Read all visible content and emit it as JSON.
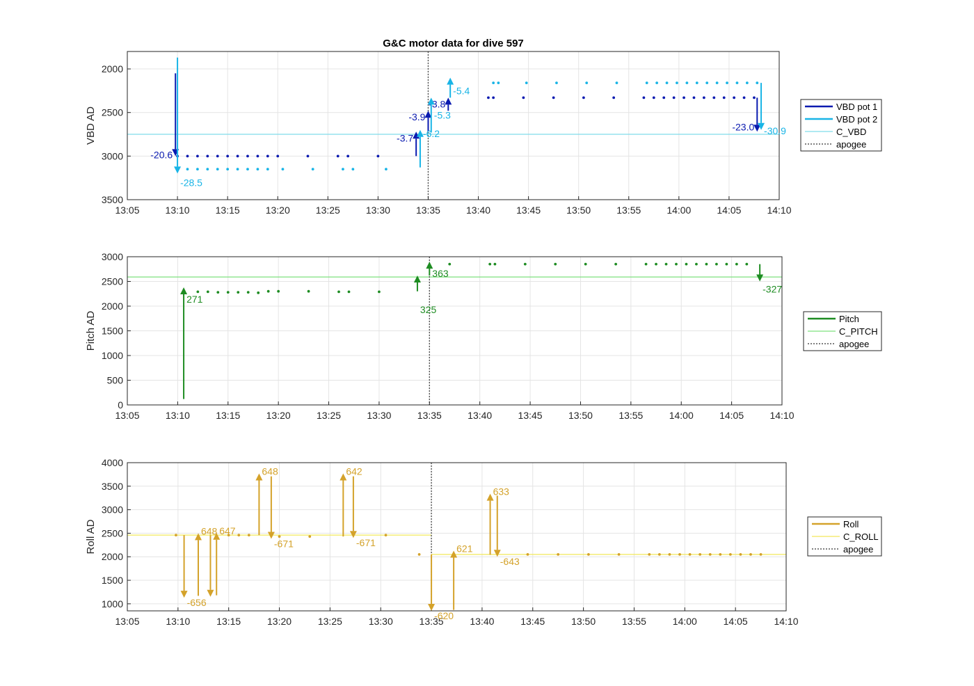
{
  "chart_data": [
    {
      "type": "line",
      "title": "G&C motor data for dive 597",
      "xlabel": "",
      "ylabel": "VBD AD",
      "xlim": [
        "13:05",
        "14:10"
      ],
      "ylim": [
        3500,
        1800
      ],
      "y_reversed": true,
      "grid": true,
      "legend_placement": "outside-right",
      "xticks": [
        "13:05",
        "13:10",
        "13:15",
        "13:20",
        "13:25",
        "13:30",
        "13:35",
        "13:40",
        "13:45",
        "13:50",
        "13:55",
        "14:00",
        "14:05",
        "14:10"
      ],
      "yticks": [
        2000,
        2500,
        3000,
        3500
      ],
      "reference_lines": [
        {
          "name": "C_VBD",
          "orientation": "horizontal",
          "value": 2750,
          "color": "#7fdcea"
        },
        {
          "name": "apogee",
          "orientation": "vertical",
          "value": "13:35",
          "color": "#555555",
          "dashed": true
        }
      ],
      "series": [
        {
          "name": "VBD pot 1",
          "color": "#0a1ab0",
          "points": [
            {
              "x": "13:10",
              "y": 3000
            },
            {
              "x": "13:11",
              "y": 3000
            },
            {
              "x": "13:12",
              "y": 3000
            },
            {
              "x": "13:13",
              "y": 3000
            },
            {
              "x": "13:14",
              "y": 3000
            },
            {
              "x": "13:15",
              "y": 3000
            },
            {
              "x": "13:16",
              "y": 3000
            },
            {
              "x": "13:17",
              "y": 3000
            },
            {
              "x": "13:18",
              "y": 3000
            },
            {
              "x": "13:19",
              "y": 3000
            },
            {
              "x": "13:20",
              "y": 3000
            },
            {
              "x": "13:23",
              "y": 3000
            },
            {
              "x": "13:26",
              "y": 3000
            },
            {
              "x": "13:27",
              "y": 3000
            },
            {
              "x": "13:30",
              "y": 3000
            },
            {
              "x": "13:41",
              "y": 2330
            },
            {
              "x": "13:41.5",
              "y": 2330
            },
            {
              "x": "13:44.5",
              "y": 2330
            },
            {
              "x": "13:47.5",
              "y": 2330
            },
            {
              "x": "13:50.5",
              "y": 2330
            },
            {
              "x": "13:53.5",
              "y": 2330
            },
            {
              "x": "13:56.5",
              "y": 2330
            },
            {
              "x": "13:57.5",
              "y": 2330
            },
            {
              "x": "13:58.5",
              "y": 2330
            },
            {
              "x": "13:59.5",
              "y": 2330
            },
            {
              "x": "14:00.5",
              "y": 2330
            },
            {
              "x": "14:01.5",
              "y": 2330
            },
            {
              "x": "14:02.5",
              "y": 2330
            },
            {
              "x": "14:03.5",
              "y": 2330
            },
            {
              "x": "14:04.5",
              "y": 2330
            },
            {
              "x": "14:05.5",
              "y": 2330
            },
            {
              "x": "14:06.5",
              "y": 2330
            },
            {
              "x": "14:07.5",
              "y": 2330
            }
          ],
          "moves": [
            {
              "x": "13:09.8",
              "y_start": 2050,
              "y_end": 3000,
              "label": "-20.6"
            },
            {
              "x": "13:33.8",
              "y_start": 3000,
              "y_end": 2720,
              "label": "-3.7"
            },
            {
              "x": "13:35",
              "y_start": 2720,
              "y_end": 2480,
              "label": "-3.9"
            },
            {
              "x": "13:37",
              "y_start": 2480,
              "y_end": 2330,
              "label": "-3.8"
            },
            {
              "x": "14:07.8",
              "y_start": 2330,
              "y_end": 2720,
              "label": "-23.0"
            }
          ]
        },
        {
          "name": "VBD pot 2",
          "color": "#18b4e6",
          "points": [
            {
              "x": "13:11",
              "y": 3150
            },
            {
              "x": "13:12",
              "y": 3150
            },
            {
              "x": "13:13",
              "y": 3150
            },
            {
              "x": "13:14",
              "y": 3150
            },
            {
              "x": "13:15",
              "y": 3150
            },
            {
              "x": "13:16",
              "y": 3150
            },
            {
              "x": "13:17",
              "y": 3150
            },
            {
              "x": "13:18",
              "y": 3150
            },
            {
              "x": "13:19",
              "y": 3150
            },
            {
              "x": "13:20.5",
              "y": 3150
            },
            {
              "x": "13:23.5",
              "y": 3150
            },
            {
              "x": "13:26.5",
              "y": 3150
            },
            {
              "x": "13:27.5",
              "y": 3150
            },
            {
              "x": "13:30.8",
              "y": 3150
            },
            {
              "x": "13:41.5",
              "y": 2160
            },
            {
              "x": "13:42",
              "y": 2160
            },
            {
              "x": "13:44.8",
              "y": 2160
            },
            {
              "x": "13:47.8",
              "y": 2160
            },
            {
              "x": "13:50.8",
              "y": 2160
            },
            {
              "x": "13:53.8",
              "y": 2160
            },
            {
              "x": "13:56.8",
              "y": 2160
            },
            {
              "x": "13:57.8",
              "y": 2160
            },
            {
              "x": "13:58.8",
              "y": 2160
            },
            {
              "x": "13:59.8",
              "y": 2160
            },
            {
              "x": "14:00.8",
              "y": 2160
            },
            {
              "x": "14:01.8",
              "y": 2160
            },
            {
              "x": "14:02.8",
              "y": 2160
            },
            {
              "x": "14:03.8",
              "y": 2160
            },
            {
              "x": "14:04.8",
              "y": 2160
            },
            {
              "x": "14:05.8",
              "y": 2160
            },
            {
              "x": "14:06.8",
              "y": 2160
            },
            {
              "x": "14:07.8",
              "y": 2160
            }
          ],
          "moves": [
            {
              "x": "13:10",
              "y_start": 1870,
              "y_end": 3200,
              "label": "-28.5"
            },
            {
              "x": "13:34.2",
              "y_start": 3130,
              "y_end": 2700,
              "label": "-6.2"
            },
            {
              "x": "13:35.3",
              "y_start": 2730,
              "y_end": 2330,
              "label": "-5.3"
            },
            {
              "x": "13:37.2",
              "y_start": 2330,
              "y_end": 2100,
              "label": "-5.4"
            },
            {
              "x": "14:08.2",
              "y_start": 2160,
              "y_end": 2700,
              "label": "-30.9"
            }
          ]
        }
      ]
    },
    {
      "type": "line",
      "title": "",
      "xlabel": "",
      "ylabel": "Pitch AD",
      "xlim": [
        "13:05",
        "14:10"
      ],
      "ylim": [
        0,
        3000
      ],
      "grid": true,
      "legend_placement": "outside-right",
      "xticks": [
        "13:05",
        "13:10",
        "13:15",
        "13:20",
        "13:25",
        "13:30",
        "13:35",
        "13:40",
        "13:45",
        "13:50",
        "13:55",
        "14:00",
        "14:05",
        "14:10"
      ],
      "yticks": [
        0,
        500,
        1000,
        1500,
        2000,
        2500,
        3000
      ],
      "reference_lines": [
        {
          "name": "C_PITCH",
          "orientation": "horizontal",
          "value": 2590,
          "color": "#7ee07e"
        },
        {
          "name": "apogee",
          "orientation": "vertical",
          "value": "13:35",
          "color": "#555555",
          "dashed": true
        }
      ],
      "series": [
        {
          "name": "Pitch",
          "color": "#1e8c22",
          "points": [
            {
              "x": "13:12",
              "y": 2290
            },
            {
              "x": "13:13",
              "y": 2290
            },
            {
              "x": "13:14",
              "y": 2280
            },
            {
              "x": "13:15",
              "y": 2280
            },
            {
              "x": "13:16",
              "y": 2280
            },
            {
              "x": "13:17",
              "y": 2280
            },
            {
              "x": "13:18",
              "y": 2270
            },
            {
              "x": "13:19",
              "y": 2300
            },
            {
              "x": "13:20",
              "y": 2300
            },
            {
              "x": "13:23",
              "y": 2300
            },
            {
              "x": "13:26",
              "y": 2290
            },
            {
              "x": "13:27",
              "y": 2290
            },
            {
              "x": "13:30",
              "y": 2290
            },
            {
              "x": "13:37",
              "y": 2850
            },
            {
              "x": "13:41",
              "y": 2850
            },
            {
              "x": "13:41.5",
              "y": 2850
            },
            {
              "x": "13:44.5",
              "y": 2850
            },
            {
              "x": "13:47.5",
              "y": 2850
            },
            {
              "x": "13:50.5",
              "y": 2850
            },
            {
              "x": "13:53.5",
              "y": 2850
            },
            {
              "x": "13:56.5",
              "y": 2850
            },
            {
              "x": "13:57.5",
              "y": 2850
            },
            {
              "x": "13:58.5",
              "y": 2850
            },
            {
              "x": "13:59.5",
              "y": 2850
            },
            {
              "x": "14:00.5",
              "y": 2850
            },
            {
              "x": "14:01.5",
              "y": 2850
            },
            {
              "x": "14:02.5",
              "y": 2850
            },
            {
              "x": "14:03.5",
              "y": 2850
            },
            {
              "x": "14:04.5",
              "y": 2850
            },
            {
              "x": "14:05.5",
              "y": 2850
            },
            {
              "x": "14:06.5",
              "y": 2850
            }
          ],
          "moves": [
            {
              "x": "13:10.6",
              "y_start": 120,
              "y_end": 2380,
              "label": "271"
            },
            {
              "x": "13:33.8",
              "y_start": 2300,
              "y_end": 2620,
              "label": "325"
            },
            {
              "x": "13:35",
              "y_start": 2620,
              "y_end": 2900,
              "label": "363"
            },
            {
              "x": "14:07.8",
              "y_start": 2850,
              "y_end": 2500,
              "label": "-327"
            }
          ]
        }
      ]
    },
    {
      "type": "line",
      "title": "",
      "xlabel": "",
      "ylabel": "Roll AD",
      "xlim": [
        "13:05",
        "14:10"
      ],
      "ylim": [
        850,
        4000
      ],
      "grid": true,
      "legend_placement": "outside-right",
      "xticks": [
        "13:05",
        "13:10",
        "13:15",
        "13:20",
        "13:25",
        "13:30",
        "13:35",
        "13:40",
        "13:45",
        "13:50",
        "13:55",
        "14:00",
        "14:05",
        "14:10"
      ],
      "yticks": [
        1000,
        1500,
        2000,
        2500,
        3000,
        3500,
        4000
      ],
      "reference_lines": [
        {
          "name": "C_ROLL",
          "orientation": "horizontal",
          "value": 2460,
          "x_range": [
            "13:05",
            "13:35"
          ],
          "color": "#f2e85a"
        },
        {
          "name": "C_ROLL",
          "orientation": "horizontal",
          "value": 2050,
          "x_range": [
            "13:35",
            "14:10"
          ],
          "color": "#f2e85a"
        },
        {
          "name": "apogee",
          "orientation": "vertical",
          "value": "13:35",
          "color": "#555555",
          "dashed": true
        }
      ],
      "series": [
        {
          "name": "Roll",
          "color": "#d4a22a",
          "points": [
            {
              "x": "13:09.8",
              "y": 2460
            },
            {
              "x": "13:15",
              "y": 2460
            },
            {
              "x": "13:16",
              "y": 2460
            },
            {
              "x": "13:17",
              "y": 2460
            },
            {
              "x": "13:20",
              "y": 2430
            },
            {
              "x": "13:23",
              "y": 2430
            },
            {
              "x": "13:30.5",
              "y": 2460
            },
            {
              "x": "13:33.8",
              "y": 2050
            },
            {
              "x": "13:44.5",
              "y": 2050
            },
            {
              "x": "13:47.5",
              "y": 2050
            },
            {
              "x": "13:50.5",
              "y": 2050
            },
            {
              "x": "13:53.5",
              "y": 2050
            },
            {
              "x": "13:56.5",
              "y": 2050
            },
            {
              "x": "13:57.5",
              "y": 2050
            },
            {
              "x": "13:58.5",
              "y": 2050
            },
            {
              "x": "13:59.5",
              "y": 2050
            },
            {
              "x": "14:00.5",
              "y": 2050
            },
            {
              "x": "14:01.5",
              "y": 2050
            },
            {
              "x": "14:02.5",
              "y": 2050
            },
            {
              "x": "14:03.5",
              "y": 2050
            },
            {
              "x": "14:04.5",
              "y": 2050
            },
            {
              "x": "14:05.5",
              "y": 2050
            },
            {
              "x": "14:06.5",
              "y": 2050
            },
            {
              "x": "14:07.5",
              "y": 2050
            }
          ],
          "moves": [
            {
              "x": "13:10.6",
              "y_start": 2460,
              "y_end": 1130,
              "label": "-656"
            },
            {
              "x": "13:12",
              "y_start": 1170,
              "y_end": 2500,
              "label": "648"
            },
            {
              "x": "13:13.2",
              "y_start": 2460,
              "y_end": 1150,
              "label": ""
            },
            {
              "x": "13:13.8",
              "y_start": 1180,
              "y_end": 2510,
              "label": "647"
            },
            {
              "x": "13:18",
              "y_start": 2460,
              "y_end": 3770,
              "label": "648"
            },
            {
              "x": "13:19.2",
              "y_start": 3710,
              "y_end": 2380,
              "label": "-671"
            },
            {
              "x": "13:26.3",
              "y_start": 2430,
              "y_end": 3770,
              "label": "642"
            },
            {
              "x": "13:27.3",
              "y_start": 3710,
              "y_end": 2400,
              "label": "-671"
            },
            {
              "x": "13:35",
              "y_start": 2050,
              "y_end": 850,
              "label": "-620"
            },
            {
              "x": "13:37.2",
              "y_start": 870,
              "y_end": 2130,
              "label": "621"
            },
            {
              "x": "13:40.8",
              "y_start": 2040,
              "y_end": 3340,
              "label": "633"
            },
            {
              "x": "13:41.5",
              "y_start": 3300,
              "y_end": 2000,
              "label": "-643"
            }
          ]
        }
      ]
    }
  ]
}
